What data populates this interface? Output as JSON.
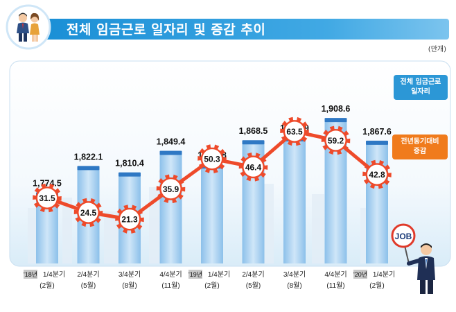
{
  "title": "전체 임금근로 일자리 및 증감 추이",
  "unit": "(만개)",
  "legend": {
    "total": [
      "전체 임금근로",
      "일자리"
    ],
    "change": [
      "전년동기대비",
      "증감"
    ]
  },
  "year_tags": [
    "'18년",
    "'19년",
    "'20년"
  ],
  "mascot_sign": "JOB",
  "colors": {
    "bar": "#a9cfef",
    "bar_cap": "#2e78c4",
    "line": "#ee4a2a",
    "title_bar": "#1a8fd6"
  },
  "chart_data": {
    "type": "bar",
    "categories": [
      "1/4분기",
      "2/4분기",
      "3/4분기",
      "4/4분기",
      "1/4분기",
      "2/4분기",
      "3/4분기",
      "4/4분기",
      "1/4분기"
    ],
    "sub_labels": [
      "(2월)",
      "(5월)",
      "(8월)",
      "(11월)",
      "(2월)",
      "(5월)",
      "(8월)",
      "(11월)",
      "(2월)"
    ],
    "year_tag_index": [
      0,
      4,
      8
    ],
    "series": [
      {
        "name": "전체 임금근로 일자리",
        "type": "bar",
        "values": [
          1774.5,
          1822.1,
          1810.4,
          1849.4,
          1824.8,
          1868.5,
          1873.9,
          1908.6,
          1867.6
        ],
        "labels": [
          "1,774.5",
          "1,822.1",
          "1,810.4",
          "1,849.4",
          "1,824.8",
          "1,868.5",
          "1,873.9",
          "1,908.6",
          "1,867.6"
        ]
      },
      {
        "name": "전년동기대비 증감",
        "type": "line",
        "values": [
          31.5,
          24.5,
          21.3,
          35.9,
          50.3,
          46.4,
          63.5,
          59.2,
          42.8
        ],
        "labels": [
          "31.5",
          "24.5",
          "21.3",
          "35.9",
          "50.3",
          "46.4",
          "63.5",
          "59.2",
          "42.8"
        ]
      }
    ],
    "grid": false
  }
}
